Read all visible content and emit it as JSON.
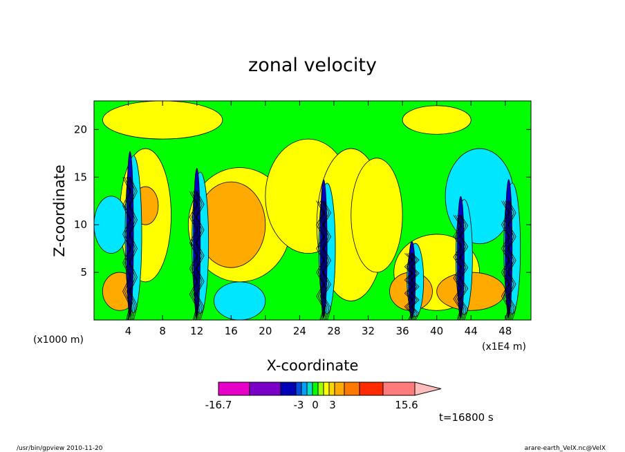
{
  "chart_data": {
    "type": "heatmap",
    "title": "zonal velocity",
    "xlabel": "X-coordinate",
    "ylabel": "Z-coordinate",
    "x_unit_left": "(x1000 m)",
    "x_unit_right": "(x1E4 m)",
    "xlim": [
      0,
      51
    ],
    "ylim": [
      0,
      23
    ],
    "x_ticks": [
      4,
      8,
      12,
      16,
      20,
      24,
      28,
      32,
      36,
      40,
      44,
      48
    ],
    "y_ticks": [
      5,
      10,
      15,
      20
    ],
    "colorbar": {
      "labels": [
        "-16.7",
        "-3",
        "0",
        "3",
        "15.6"
      ],
      "colors": [
        "#e600c8",
        "#7a00c8",
        "#0000b4",
        "#0050e0",
        "#00a0ff",
        "#00e0c8",
        "#00ff00",
        "#a0ff00",
        "#ffff00",
        "#ffd700",
        "#ffaa00",
        "#ff7800",
        "#ff2a00",
        "#ff7a7a",
        "#ffbcbc"
      ]
    },
    "timestamp": "t=16800 s",
    "background_color": "#00ff00",
    "colors": {
      "strong_positive": "#ffaa00",
      "weak_positive": "#ffff00",
      "near_zero": "#00ff00",
      "weak_negative": "#00e6ff",
      "strong_negative": "#0000c8"
    }
  },
  "footer": {
    "left": "/usr/bin/gpview   2010-11-20",
    "right": "arare-earth_VelX.nc@VelX"
  }
}
